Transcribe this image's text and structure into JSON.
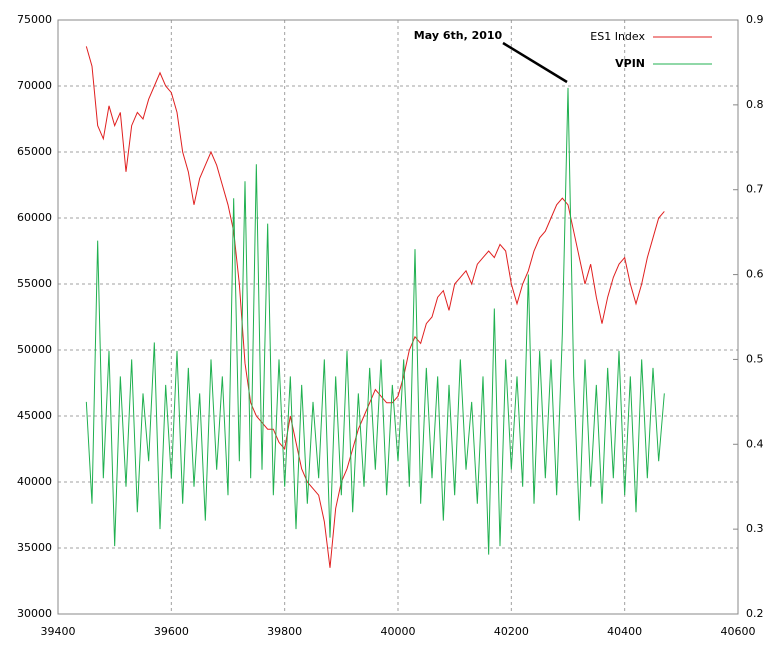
{
  "chart_data": {
    "type": "line",
    "annotation": "May 6th, 2010",
    "x": [
      39450,
      39460,
      39470,
      39480,
      39490,
      39500,
      39510,
      39520,
      39530,
      39540,
      39550,
      39560,
      39570,
      39580,
      39590,
      39600,
      39610,
      39620,
      39630,
      39640,
      39650,
      39660,
      39670,
      39680,
      39690,
      39700,
      39710,
      39720,
      39730,
      39740,
      39750,
      39760,
      39770,
      39780,
      39790,
      39800,
      39810,
      39820,
      39830,
      39840,
      39850,
      39860,
      39870,
      39880,
      39890,
      39900,
      39910,
      39920,
      39930,
      39940,
      39950,
      39960,
      39970,
      39980,
      39990,
      40000,
      40010,
      40020,
      40030,
      40040,
      40050,
      40060,
      40070,
      40080,
      40090,
      40100,
      40110,
      40120,
      40130,
      40140,
      40150,
      40160,
      40170,
      40180,
      40190,
      40200,
      40210,
      40220,
      40230,
      40240,
      40250,
      40260,
      40270,
      40280,
      40290,
      40300,
      40310,
      40320,
      40330,
      40340,
      40350,
      40360,
      40370,
      40380,
      40390,
      40400,
      40410,
      40420,
      40430,
      40440,
      40450,
      40460,
      40470
    ],
    "series": [
      {
        "name": "ES1 Index",
        "color": "#e02020",
        "axis": "y",
        "values": [
          73000,
          71500,
          67000,
          66000,
          68500,
          67000,
          68000,
          63500,
          67000,
          68000,
          67500,
          69000,
          70000,
          71000,
          70000,
          69500,
          68000,
          65000,
          63500,
          61000,
          63000,
          64000,
          65000,
          64000,
          62500,
          61000,
          59000,
          55000,
          49000,
          46000,
          45000,
          44500,
          44000,
          44000,
          43000,
          42500,
          45000,
          43000,
          41000,
          40000,
          39500,
          39000,
          37000,
          33500,
          38000,
          40000,
          41000,
          42500,
          44000,
          45000,
          46000,
          47000,
          46500,
          46000,
          46000,
          46500,
          48000,
          50000,
          51000,
          50500,
          52000,
          52500,
          54000,
          54500,
          53000,
          55000,
          55500,
          56000,
          55000,
          56500,
          57000,
          57500,
          57000,
          58000,
          57500,
          55000,
          53500,
          55000,
          56000,
          57500,
          58500,
          59000,
          60000,
          61000,
          61500,
          61000,
          59000,
          57000,
          55000,
          56500,
          54000,
          52000,
          54000,
          55500,
          56500,
          57000,
          55000,
          53500,
          55000,
          57000,
          58500,
          60000,
          60500
        ]
      },
      {
        "name": "VPIN",
        "color": "#20b050",
        "axis": "y2",
        "values": [
          0.45,
          0.33,
          0.64,
          0.36,
          0.51,
          0.28,
          0.48,
          0.35,
          0.5,
          0.32,
          0.46,
          0.38,
          0.52,
          0.3,
          0.47,
          0.36,
          0.51,
          0.33,
          0.49,
          0.35,
          0.46,
          0.31,
          0.5,
          0.37,
          0.48,
          0.34,
          0.69,
          0.38,
          0.71,
          0.36,
          0.73,
          0.37,
          0.66,
          0.34,
          0.5,
          0.35,
          0.48,
          0.3,
          0.47,
          0.33,
          0.45,
          0.36,
          0.5,
          0.29,
          0.48,
          0.34,
          0.51,
          0.32,
          0.46,
          0.35,
          0.49,
          0.37,
          0.5,
          0.34,
          0.47,
          0.38,
          0.5,
          0.35,
          0.63,
          0.33,
          0.49,
          0.36,
          0.48,
          0.31,
          0.47,
          0.34,
          0.5,
          0.37,
          0.45,
          0.33,
          0.48,
          0.27,
          0.56,
          0.28,
          0.5,
          0.37,
          0.48,
          0.35,
          0.6,
          0.33,
          0.51,
          0.36,
          0.5,
          0.34,
          0.53,
          0.82,
          0.48,
          0.31,
          0.5,
          0.35,
          0.47,
          0.33,
          0.49,
          0.36,
          0.51,
          0.34,
          0.48,
          0.32,
          0.5,
          0.36,
          0.49,
          0.38,
          0.46
        ]
      }
    ],
    "xlim": [
      39400,
      40600
    ],
    "xticks": [
      39400,
      39600,
      39800,
      40000,
      40200,
      40400,
      40600
    ],
    "ylim": [
      30000,
      75000
    ],
    "yticks": [
      30000,
      35000,
      40000,
      45000,
      50000,
      55000,
      60000,
      65000,
      70000,
      75000
    ],
    "y2lim": [
      0.2,
      0.9
    ],
    "y2ticks": [
      0.2,
      0.3,
      0.4,
      0.5,
      0.6,
      0.7,
      0.8,
      0.9
    ],
    "grid": true,
    "legend": "upper right"
  }
}
